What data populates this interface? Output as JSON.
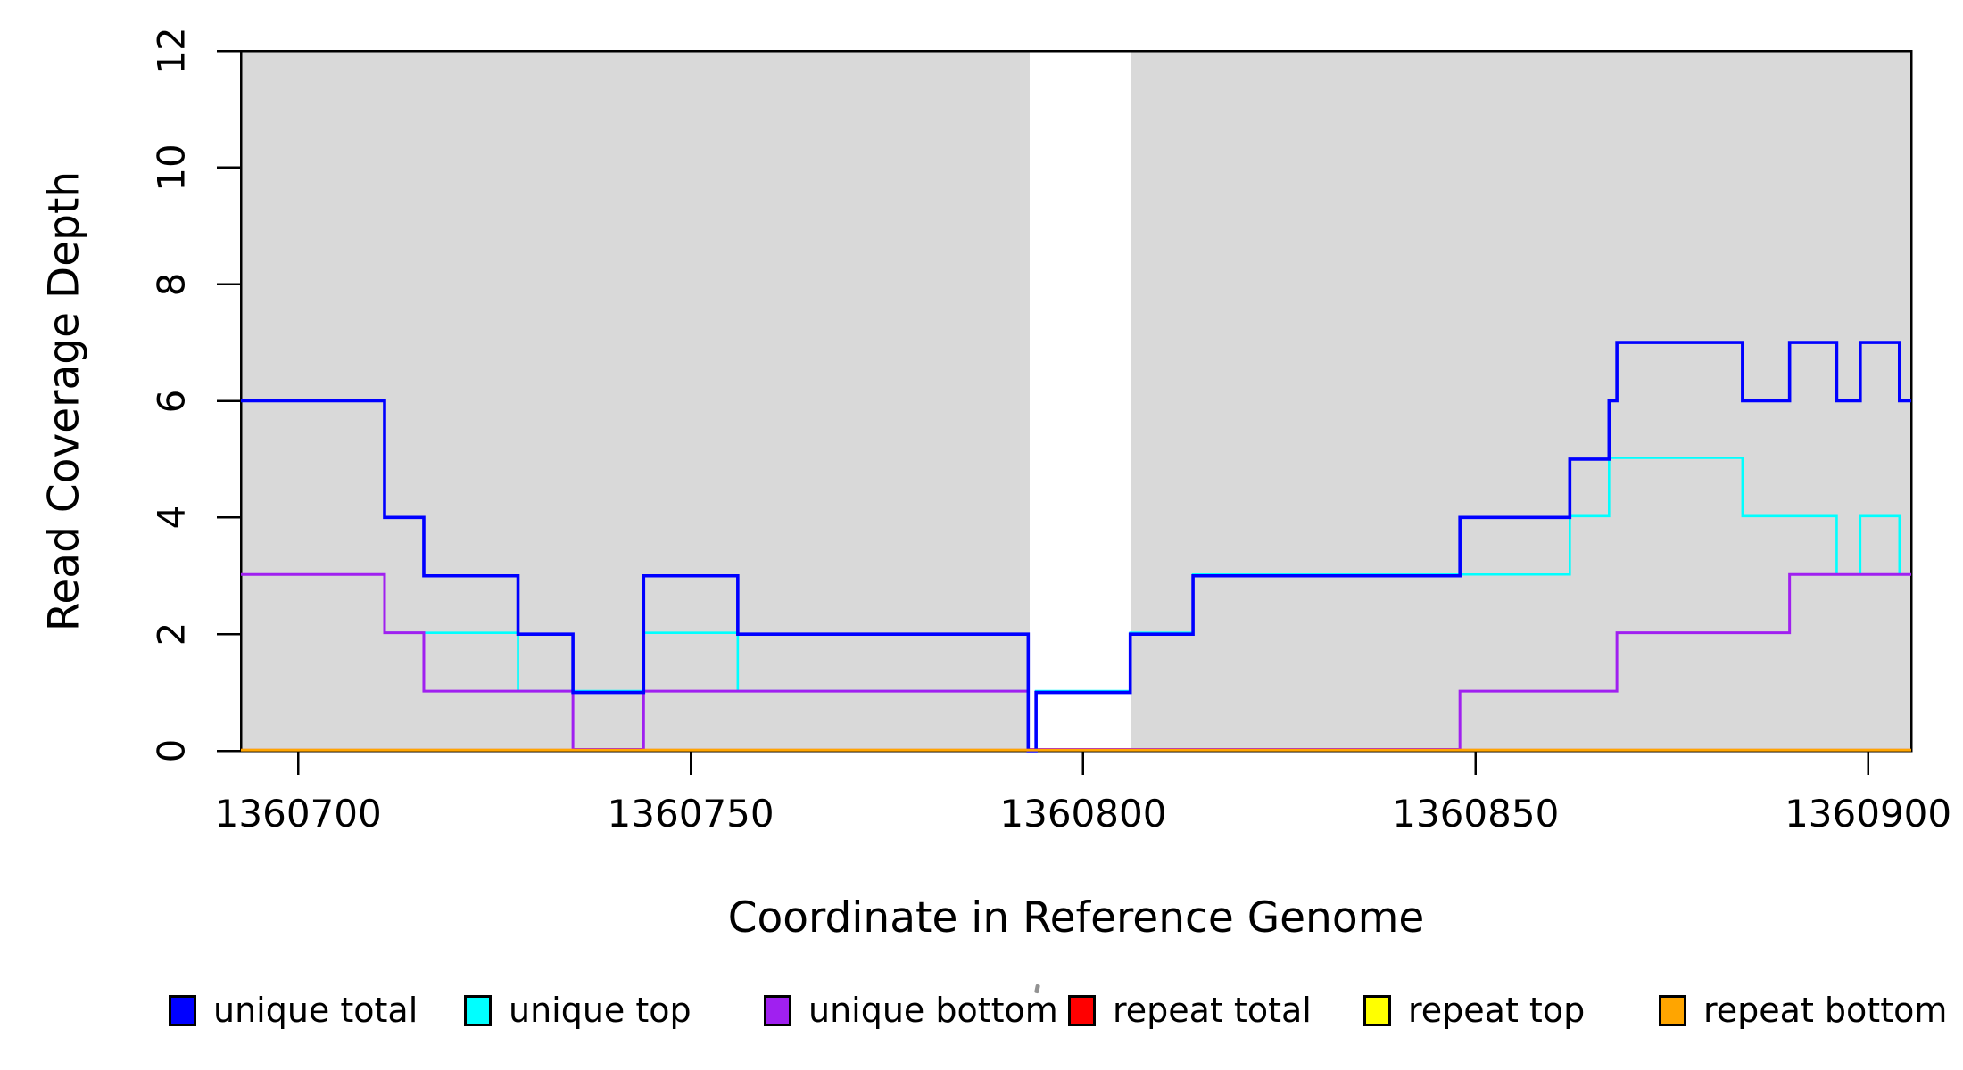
{
  "figure": {
    "xlabel": "Coordinate in Reference Genome",
    "ylabel": "Read Coverage Depth",
    "background_color": "#ffffff",
    "shaded_band_color": "#d9d9d9",
    "axis_color": "#000000"
  },
  "legend": {
    "items": [
      {
        "label": "unique total",
        "color": "#0000ff"
      },
      {
        "label": "unique top",
        "color": "#00ffff"
      },
      {
        "label": "unique bottom",
        "color": "#a020f0"
      },
      {
        "label": "repeat total",
        "color": "#ff0000"
      },
      {
        "label": "repeat top",
        "color": "#ffff00"
      },
      {
        "label": "repeat bottom",
        "color": "#ffa500"
      }
    ]
  },
  "chart_data": {
    "type": "line",
    "subtype": "step",
    "title": "",
    "xlabel": "Coordinate in Reference Genome",
    "ylabel": "Read Coverage Depth",
    "xlim": [
      1360692.7,
      1360905.5
    ],
    "ylim": [
      0,
      12
    ],
    "grid": false,
    "legend_position": "bottom",
    "xticks": [
      {
        "value": 1360700,
        "label": "1360700"
      },
      {
        "value": 1360750,
        "label": "1360750"
      },
      {
        "value": 1360800,
        "label": "1360800"
      },
      {
        "value": 1360850,
        "label": "1360850"
      },
      {
        "value": 1360900,
        "label": "1360900"
      }
    ],
    "yticks": [
      {
        "value": 0,
        "label": "0"
      },
      {
        "value": 2,
        "label": "2"
      },
      {
        "value": 4,
        "label": "4"
      },
      {
        "value": 6,
        "label": "6"
      },
      {
        "value": 8,
        "label": "8"
      },
      {
        "value": 10,
        "label": "10"
      },
      {
        "value": 12,
        "label": "12"
      }
    ],
    "shaded_regions": [
      {
        "x0": 1360692.7,
        "x1": 1360793.2,
        "color": "#d9d9d9"
      },
      {
        "x0": 1360806.1,
        "x1": 1360905.5,
        "color": "#d9d9d9"
      }
    ],
    "series": [
      {
        "name": "unique total",
        "color": "#0000ff",
        "steps": [
          [
            1360692.7,
            6
          ],
          [
            1360711,
            4
          ],
          [
            1360716,
            3
          ],
          [
            1360728,
            2
          ],
          [
            1360735,
            1
          ],
          [
            1360744,
            3
          ],
          [
            1360756,
            2
          ],
          [
            1360793,
            0
          ],
          [
            1360794,
            1
          ],
          [
            1360806,
            2
          ],
          [
            1360814,
            3
          ],
          [
            1360848,
            4
          ],
          [
            1360862,
            5
          ],
          [
            1360867,
            6
          ],
          [
            1360868,
            7
          ],
          [
            1360884,
            6
          ],
          [
            1360890,
            7
          ],
          [
            1360896,
            6
          ],
          [
            1360899,
            7
          ],
          [
            1360904,
            6
          ],
          [
            1360905.5,
            6
          ]
        ]
      },
      {
        "name": "unique top",
        "color": "#00ffff",
        "steps": [
          [
            1360692.7,
            3
          ],
          [
            1360711,
            2
          ],
          [
            1360728,
            1
          ],
          [
            1360744,
            2
          ],
          [
            1360756,
            1
          ],
          [
            1360793,
            0
          ],
          [
            1360794,
            1
          ],
          [
            1360806,
            2
          ],
          [
            1360814,
            3
          ],
          [
            1360862,
            4
          ],
          [
            1360867,
            5
          ],
          [
            1360884,
            4
          ],
          [
            1360896,
            3
          ],
          [
            1360899,
            4
          ],
          [
            1360904,
            3
          ],
          [
            1360905.5,
            3
          ]
        ]
      },
      {
        "name": "unique bottom",
        "color": "#a020f0",
        "steps": [
          [
            1360692.7,
            3
          ],
          [
            1360711,
            2
          ],
          [
            1360716,
            1
          ],
          [
            1360735,
            0
          ],
          [
            1360744,
            1
          ],
          [
            1360793,
            0
          ],
          [
            1360848,
            1
          ],
          [
            1360868,
            2
          ],
          [
            1360890,
            3
          ],
          [
            1360905.5,
            3
          ]
        ]
      },
      {
        "name": "repeat total",
        "color": "#ff0000",
        "steps": [
          [
            1360692.7,
            0
          ],
          [
            1360905.5,
            0
          ]
        ]
      },
      {
        "name": "repeat top",
        "color": "#ffff00",
        "steps": [
          [
            1360692.7,
            0
          ],
          [
            1360905.5,
            0
          ]
        ]
      },
      {
        "name": "repeat bottom",
        "color": "#ffa500",
        "steps": [
          [
            1360692.7,
            0
          ],
          [
            1360905.5,
            0
          ]
        ]
      }
    ]
  }
}
